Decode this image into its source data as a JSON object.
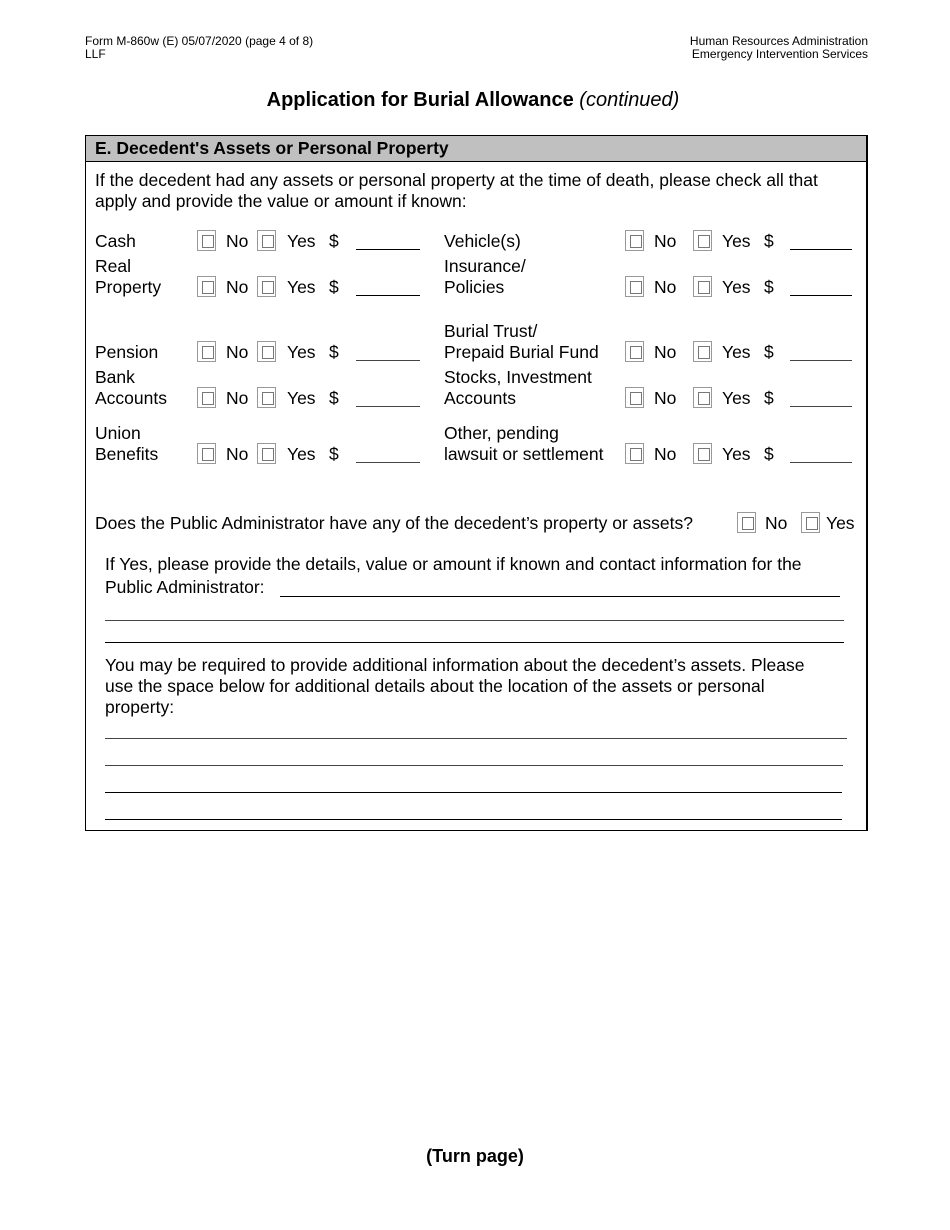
{
  "header": {
    "form_id": "Form M-860w (E) 05/07/2020 (page 4 of 8)",
    "form_code": "LLF",
    "agency": "Human Resources Administration",
    "department": "Emergency Intervention Services"
  },
  "title": {
    "main": "Application for Burial Allowance",
    "suffix": "(continued)"
  },
  "section": {
    "heading": "E. Decedent's Assets or Personal Property",
    "intro": "If the decedent had any assets or personal property at the time of death, please check all that apply and provide the value or amount if known:",
    "no_label": "No",
    "yes_label": "Yes",
    "currency": "$",
    "assets_left": [
      {
        "label": [
          "Cash"
        ]
      },
      {
        "label": [
          "Real",
          "Property"
        ]
      },
      {
        "label": [
          "Pension"
        ]
      },
      {
        "label": [
          "Bank",
          "Accounts"
        ]
      },
      {
        "label": [
          "Union",
          "Benefits"
        ]
      }
    ],
    "assets_right": [
      {
        "label": [
          "Vehicle(s)"
        ]
      },
      {
        "label": [
          "Insurance/",
          "Policies"
        ]
      },
      {
        "label": [
          "Burial Trust/",
          "Prepaid Burial Fund"
        ]
      },
      {
        "label": [
          "Stocks, Investment",
          "Accounts"
        ]
      },
      {
        "label": [
          "Other, pending",
          "lawsuit or settlement"
        ]
      }
    ],
    "public_admin_question": "Does the Public Administrator have any of the decedent’s property or assets?",
    "public_admin_details_1": "If Yes, please provide the details, value or amount if known and contact information for the",
    "public_admin_details_2": "Public Administrator:",
    "additional_1": "You may be required to provide additional information about the decedent’s assets. Please",
    "additional_2": "use the space below for additional details about the location of the assets or personal",
    "additional_3": "property:"
  },
  "footer": {
    "turn_page": "(Turn page)"
  }
}
